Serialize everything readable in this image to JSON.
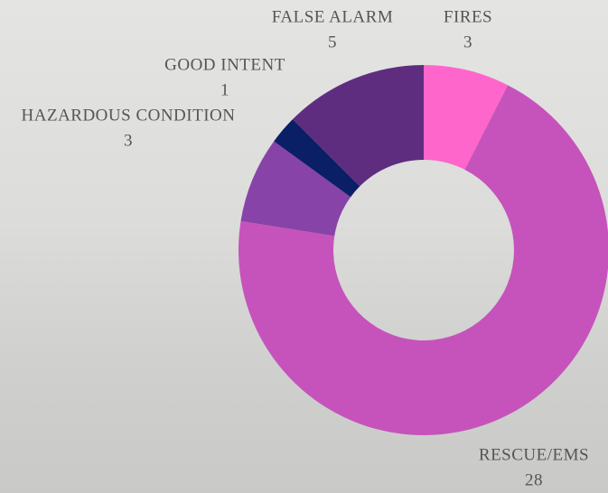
{
  "chart_data": {
    "type": "donut",
    "categories": [
      "FIRES",
      "RESCUE/EMS",
      "HAZARDOUS CONDITION",
      "GOOD INTENT",
      "FALSE ALARM"
    ],
    "values": [
      3,
      28,
      3,
      1,
      5
    ],
    "colors": [
      "#ff66cc",
      "#c653bb",
      "#8843a9",
      "#0b1f66",
      "#5f2d80"
    ]
  }
}
